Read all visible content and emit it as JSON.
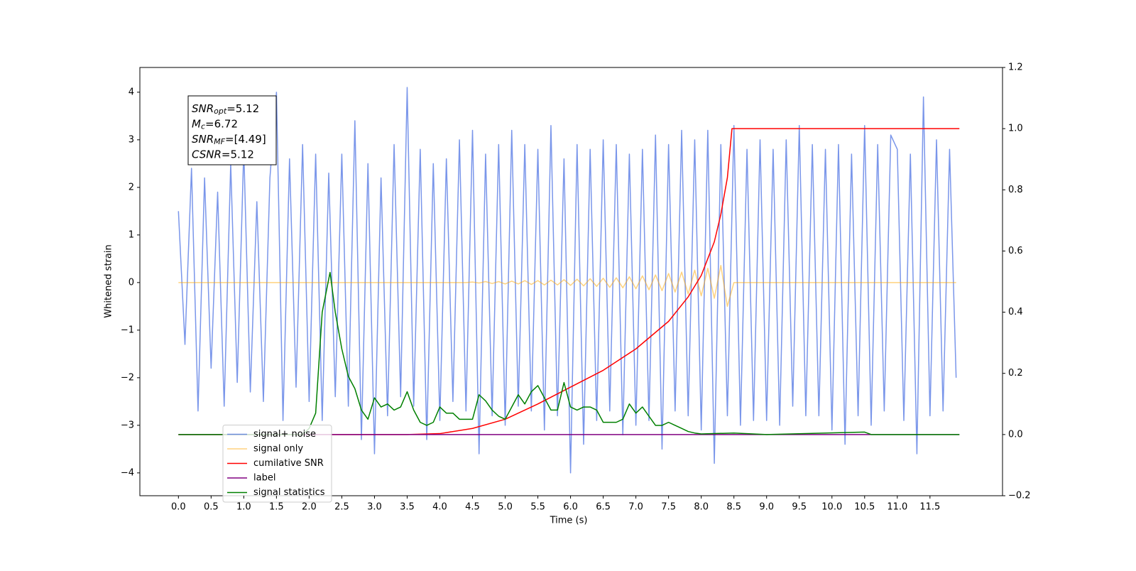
{
  "chart_data": {
    "type": "line",
    "y_label": "Whitened strain",
    "x_label": "Time (s)",
    "xlim": [
      -0.59,
      12.61
    ],
    "ylim": [
      -4.48,
      4.52
    ],
    "y2lim": [
      -0.2,
      1.2
    ],
    "xticks": [
      {
        "value": 0,
        "label": "0.0"
      },
      0.5,
      {
        "value": 1,
        "label": "1.0"
      },
      1.5,
      {
        "value": 2,
        "label": "2.0"
      },
      2.5,
      {
        "value": 3,
        "label": "3.0"
      },
      3.5,
      {
        "value": 4,
        "label": "4.0"
      },
      4.5,
      {
        "value": 5,
        "label": "5.0"
      },
      5.5,
      {
        "value": 6,
        "label": "6.0"
      },
      6.5,
      {
        "value": 7,
        "label": "7.0"
      },
      7.5,
      {
        "value": 8,
        "label": "8.0"
      },
      8.5,
      {
        "value": 9,
        "label": "9.0"
      },
      9.5,
      {
        "value": 10,
        "label": "10.0"
      },
      10.5,
      {
        "value": 11,
        "label": "11.0"
      },
      11.5
    ],
    "yticks": [
      {
        "value": -4,
        "label": "−4"
      },
      {
        "value": -3,
        "label": "−3"
      },
      {
        "value": -2,
        "label": "−2"
      },
      {
        "value": -1,
        "label": "−1"
      },
      0,
      1,
      2,
      3,
      4
    ],
    "y2ticks": [
      {
        "value": -0.2,
        "label": "−0.2"
      },
      {
        "value": 0,
        "label": "0.0"
      },
      0.2,
      0.4,
      0.6,
      0.8,
      {
        "value": 1,
        "label": "1.0"
      },
      {
        "value": 1.2,
        "label": "1.2"
      }
    ],
    "legend": "lower left",
    "annotation": [
      {
        "main": "SNR",
        "sub": "opt",
        "rest": "=5.12"
      },
      {
        "main": "M",
        "sub": "c",
        "rest": "=6.72"
      },
      {
        "main": "SNR",
        "sub": "MF",
        "rest": "=[4.49]"
      },
      {
        "main": "CSNR",
        "rest": "=5.12"
      }
    ],
    "x": [
      0,
      0.1,
      0.2,
      0.3,
      0.4,
      0.5,
      0.6,
      0.7,
      0.8,
      0.9,
      1,
      1.1,
      1.2,
      1.3,
      1.4,
      1.5,
      1.6,
      1.7,
      1.8,
      1.9,
      2,
      2.1,
      2.2,
      2.3,
      2.4,
      2.5,
      2.6,
      2.7,
      2.8,
      2.9,
      3,
      3.1,
      3.2,
      3.3,
      3.4,
      3.5,
      3.6,
      3.7,
      3.8,
      3.9,
      4,
      4.1,
      4.2,
      4.3,
      4.4,
      4.5,
      4.6,
      4.7,
      4.8,
      4.9,
      5,
      5.1,
      5.2,
      5.3,
      5.4,
      5.5,
      5.6,
      5.7,
      5.8,
      5.9,
      6,
      6.1,
      6.2,
      6.3,
      6.4,
      6.5,
      6.6,
      6.7,
      6.8,
      6.9,
      7,
      7.1,
      7.2,
      7.3,
      7.4,
      7.5,
      7.6,
      7.7,
      7.8,
      7.9,
      8,
      8.1,
      8.2,
      8.3,
      8.4,
      8.5,
      8.6,
      8.7,
      8.8,
      8.9,
      9,
      9.1,
      9.2,
      9.3,
      9.4,
      9.5,
      9.6,
      9.7,
      9.8,
      9.9,
      10,
      10.1,
      10.2,
      10.3,
      10.4,
      10.5,
      10.6,
      10.7,
      10.8,
      10.9,
      11,
      11.1,
      11.2,
      11.3,
      11.4,
      11.5,
      11.6,
      11.7,
      11.8,
      11.9
    ],
    "series": [
      {
        "name": "signal+ noise",
        "color": "#4169e1",
        "alpha": 0.7,
        "values": [
          1.5,
          -1.3,
          2.4,
          -2.7,
          2.2,
          -1.8,
          1.9,
          -2.6,
          2.5,
          -2.1,
          2.8,
          -2.3,
          1.7,
          -2.5,
          2.2,
          4.0,
          -2.9,
          2.6,
          -2.2,
          2.9,
          -2.5,
          2.7,
          -2.9,
          2.3,
          -2.4,
          2.7,
          -2.6,
          3.4,
          -3.3,
          2.5,
          -3.6,
          2.2,
          -2.8,
          2.9,
          -2.4,
          4.1,
          -2.6,
          2.8,
          -3.3,
          2.5,
          -2.9,
          2.6,
          -2.5,
          3.0,
          -2.7,
          3.2,
          -3.6,
          2.7,
          -2.8,
          2.9,
          -3.0,
          3.2,
          -2.6,
          2.9,
          -2.7,
          2.8,
          -3.1,
          3.3,
          -2.8,
          2.6,
          -4.0,
          2.9,
          -3.4,
          2.8,
          -2.9,
          3.0,
          -2.7,
          2.9,
          -3.2,
          2.7,
          -3.0,
          2.8,
          -2.9,
          3.1,
          -3.5,
          2.9,
          -2.7,
          3.2,
          -2.8,
          3.0,
          -3.1,
          3.2,
          -3.8,
          2.9,
          -2.8,
          3.3,
          -3.0,
          2.8,
          -2.9,
          3.0,
          -2.9,
          2.8,
          -3.0,
          3.0,
          -2.6,
          3.3,
          -2.8,
          2.9,
          -2.8,
          2.8,
          -3.1,
          2.9,
          -3.4,
          2.7,
          -2.8,
          3.3,
          -3.0,
          2.9,
          -2.7,
          3.1,
          2.8,
          -2.9,
          2.7,
          -3.6,
          3.9,
          -2.8,
          3.0,
          -2.7,
          2.8,
          -2.0
        ]
      },
      {
        "name": "signal only",
        "color": "#ffa500",
        "alpha": 0.5,
        "values": [
          0,
          0,
          0,
          0,
          0,
          0,
          0,
          0,
          0,
          0,
          0,
          0,
          0,
          0,
          0,
          0,
          0,
          0,
          0,
          0,
          0,
          0,
          0,
          0,
          0,
          0,
          0,
          0,
          0,
          0,
          0,
          0,
          0,
          0,
          0,
          0,
          0,
          0,
          0,
          0,
          0,
          0,
          0,
          0,
          0,
          0.01,
          -0.01,
          0.02,
          -0.02,
          0.02,
          -0.03,
          0.03,
          -0.03,
          0.04,
          -0.04,
          0.04,
          -0.05,
          0.05,
          -0.05,
          0.06,
          -0.06,
          0.07,
          -0.07,
          0.08,
          -0.08,
          0.09,
          -0.1,
          0.1,
          -0.11,
          0.12,
          -0.13,
          0.14,
          -0.15,
          0.16,
          -0.17,
          0.19,
          -0.2,
          0.22,
          -0.24,
          0.26,
          -0.28,
          0.3,
          -0.33,
          0.36,
          -0.5,
          0,
          0,
          0,
          0,
          0,
          0,
          0,
          0,
          0,
          0,
          0,
          0,
          0,
          0,
          0,
          0,
          0,
          0,
          0,
          0,
          0,
          0,
          0,
          0,
          0,
          0,
          0,
          0,
          0,
          0,
          0,
          0,
          0,
          0,
          0
        ]
      },
      {
        "name": "cumilative SNR",
        "color": "#ff0000",
        "axis": "y2",
        "x": [
          0,
          3.5,
          4,
          4.5,
          5,
          5.5,
          6,
          6.5,
          7,
          7.5,
          7.8,
          8,
          8.2,
          8.3,
          8.4,
          8.47,
          8.5,
          11.95
        ],
        "values": [
          0,
          0,
          0.003,
          0.02,
          0.05,
          0.1,
          0.155,
          0.21,
          0.28,
          0.37,
          0.45,
          0.52,
          0.63,
          0.72,
          0.84,
          1,
          1,
          1
        ]
      },
      {
        "name": "label",
        "color": "#800080",
        "axis": "y2",
        "x": [
          0,
          11.95
        ],
        "values": [
          0,
          0
        ]
      },
      {
        "name": "signal statistics",
        "color": "#008000",
        "axis": "y2",
        "x": [
          0,
          1.9,
          2,
          2.1,
          2.2,
          2.32,
          2.4,
          2.5,
          2.6,
          2.7,
          2.8,
          2.9,
          3,
          3.1,
          3.2,
          3.3,
          3.4,
          3.5,
          3.6,
          3.7,
          3.8,
          3.9,
          4,
          4.1,
          4.2,
          4.3,
          4.4,
          4.5,
          4.6,
          4.7,
          4.8,
          4.9,
          5,
          5.1,
          5.2,
          5.3,
          5.4,
          5.5,
          5.6,
          5.7,
          5.8,
          5.9,
          6,
          6.1,
          6.2,
          6.3,
          6.4,
          6.5,
          6.6,
          6.7,
          6.8,
          6.9,
          7,
          7.1,
          7.2,
          7.3,
          7.4,
          7.5,
          7.6,
          7.7,
          7.8,
          7.9,
          8,
          8.5,
          9,
          10.5,
          10.6,
          11.95
        ],
        "values": [
          0,
          0,
          0.02,
          0.07,
          0.4,
          0.53,
          0.4,
          0.28,
          0.19,
          0.15,
          0.08,
          0.05,
          0.12,
          0.09,
          0.1,
          0.08,
          0.09,
          0.14,
          0.08,
          0.04,
          0.03,
          0.04,
          0.09,
          0.07,
          0.07,
          0.05,
          0.05,
          0.05,
          0.13,
          0.11,
          0.08,
          0.06,
          0.05,
          0.09,
          0.13,
          0.1,
          0.14,
          0.16,
          0.12,
          0.08,
          0.08,
          0.17,
          0.09,
          0.08,
          0.09,
          0.09,
          0.08,
          0.04,
          0.04,
          0.04,
          0.05,
          0.1,
          0.07,
          0.09,
          0.06,
          0.03,
          0.03,
          0.04,
          0.03,
          0.02,
          0.01,
          0.005,
          0.002,
          0.005,
          0,
          0.008,
          0,
          0
        ]
      }
    ]
  }
}
